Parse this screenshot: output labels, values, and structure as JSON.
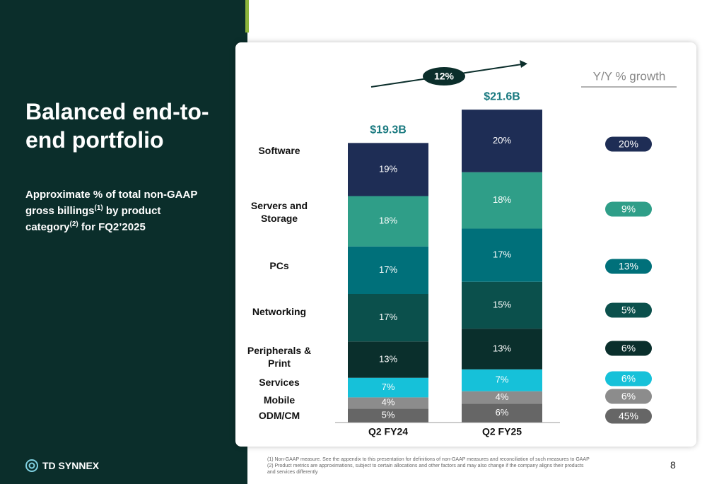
{
  "title": "Balanced end-to-end portfolio",
  "subtitle": [
    "Approximate % of total non-GAAP gross billings",
    "(1)",
    " by product category",
    "(2)",
    " for FQ2’2025"
  ],
  "logo": "TD SYNNEX",
  "page_number": "8",
  "footnotes": [
    "(1)  Non-GAAP measure. See the appendix to this presentation for definitions of non-GAAP measures and reconciliation of such measures to GAAP",
    "(2)  Product metrics are approximations, subject to certain allocations and other factors and may also change if the company aligns their products and services differently"
  ],
  "chart_data": {
    "type": "bar",
    "stacked": true,
    "categories": [
      "Q2 FY24",
      "Q2 FY25"
    ],
    "totals": {
      "values": [
        19.3,
        21.6
      ],
      "value_labels": [
        "$19.3B",
        "$21.6B"
      ]
    },
    "overall_growth": {
      "value": 12,
      "label": "12%"
    },
    "growth_title": "Y/Y % growth",
    "series": [
      {
        "name": "ODM/CM",
        "color": "#666666",
        "values": [
          5,
          6
        ],
        "value_labels": [
          "5%",
          "6%"
        ],
        "growth": 45,
        "growth_label": "45%"
      },
      {
        "name": "Mobile",
        "color": "#8c8c8c",
        "values": [
          4,
          4
        ],
        "value_labels": [
          "4%",
          "4%"
        ],
        "growth": 6,
        "growth_label": "6%"
      },
      {
        "name": "Services",
        "color": "#16c1d9",
        "values": [
          7,
          7
        ],
        "value_labels": [
          "7%",
          "7%"
        ],
        "growth": 6,
        "growth_label": "6%"
      },
      {
        "name": "Peripherals & Print",
        "color": "#0a2f2c",
        "values": [
          13,
          13
        ],
        "value_labels": [
          "13%",
          "13%"
        ],
        "growth": 6,
        "growth_label": "6%"
      },
      {
        "name": "Networking",
        "color": "#0b504c",
        "values": [
          17,
          15
        ],
        "value_labels": [
          "17%",
          "15%"
        ],
        "growth": 5,
        "growth_label": "5%"
      },
      {
        "name": "PCs",
        "color": "#00707a",
        "values": [
          17,
          17
        ],
        "value_labels": [
          "17%",
          "17%"
        ],
        "growth": 13,
        "growth_label": "13%"
      },
      {
        "name": "Servers and Storage",
        "color": "#2f9e88",
        "values": [
          18,
          18
        ],
        "value_labels": [
          "18%",
          "18%"
        ],
        "growth": 9,
        "growth_label": "9%"
      },
      {
        "name": "Software",
        "color": "#1e2d55",
        "values": [
          19,
          20
        ],
        "value_labels": [
          "19%",
          "20%"
        ],
        "growth": 20,
        "growth_label": "20%"
      }
    ]
  }
}
